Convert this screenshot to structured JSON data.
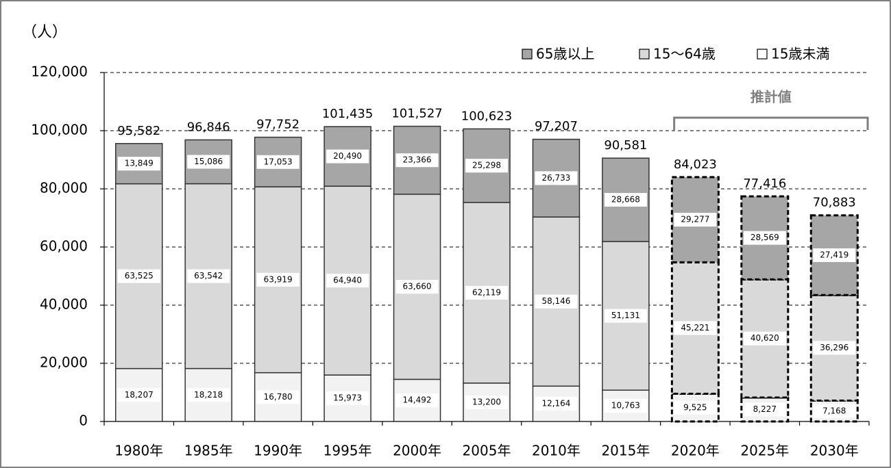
{
  "chart_data": {
    "type": "stacked-bar",
    "y_label": "（人）",
    "categories": [
      "1980年",
      "1985年",
      "1990年",
      "1995年",
      "2000年",
      "2005年",
      "2010年",
      "2015年",
      "2020年",
      "2025年",
      "2030年"
    ],
    "series": [
      {
        "name": "65歳以上",
        "color": "#a6a6a6",
        "values": [
          13849,
          15086,
          17053,
          20490,
          23366,
          25298,
          26733,
          28668,
          29277,
          28569,
          27419
        ],
        "value_labels": [
          "13,849",
          "15,086",
          "17,053",
          "20,490",
          "23,366",
          "25,298",
          "26,733",
          "28,668",
          "29,277",
          "28,569",
          "27,419"
        ]
      },
      {
        "name": "15～64歳",
        "color": "#d9d9d9",
        "values": [
          63525,
          63542,
          63919,
          64940,
          63660,
          62119,
          58146,
          51131,
          45221,
          40620,
          36296
        ],
        "value_labels": [
          "63,525",
          "63,542",
          "63,919",
          "64,940",
          "63,660",
          "62,119",
          "58,146",
          "51,131",
          "45,221",
          "40,620",
          "36,296"
        ]
      },
      {
        "name": "15歳未満",
        "color": "#f2f2f2",
        "values": [
          18207,
          18218,
          16780,
          15973,
          14492,
          13200,
          12164,
          10763,
          9525,
          8227,
          7168
        ],
        "value_labels": [
          "18,207",
          "18,218",
          "16,780",
          "15,973",
          "14,492",
          "13,200",
          "12,164",
          "10,763",
          "9,525",
          "8,227",
          "7,168"
        ]
      }
    ],
    "totals": {
      "values": [
        95582,
        96846,
        97752,
        101435,
        101527,
        100623,
        97207,
        90581,
        84023,
        77416,
        70883
      ],
      "value_labels": [
        "95,582",
        "96,846",
        "97,752",
        "101,435",
        "101,527",
        "100,623",
        "97,207",
        "90,581",
        "84,023",
        "77,416",
        "70,883"
      ]
    },
    "annotation": {
      "text": "推計値",
      "from": "2020年",
      "to": "2030年"
    },
    "ylim": [
      0,
      120000
    ],
    "yticks": [
      0,
      {
        "value": 20000,
        "label": "20,000"
      },
      {
        "value": 40000,
        "label": "40,000"
      },
      {
        "value": 60000,
        "label": "60,000"
      },
      {
        "value": 80000,
        "label": "80,000"
      },
      {
        "value": 100000,
        "label": "100,000"
      },
      {
        "value": 120000,
        "label": "120,000"
      }
    ],
    "grid": true,
    "legend": "top-right"
  }
}
